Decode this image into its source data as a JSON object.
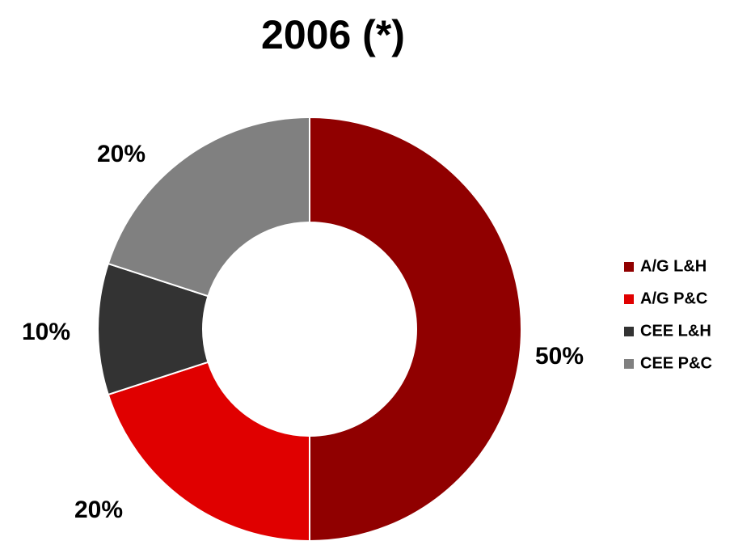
{
  "chart_data": {
    "type": "donut",
    "title": "2006 (*)",
    "categories": [
      "A/G L&H",
      "A/G P&C",
      "CEE L&H",
      "CEE P&C"
    ],
    "values": [
      50,
      20,
      10,
      20
    ],
    "value_labels": [
      "50%",
      "20%",
      "10%",
      "20%"
    ],
    "colors": [
      "#900000",
      "#e00000",
      "#333333",
      "#808080"
    ],
    "legend": "right"
  }
}
